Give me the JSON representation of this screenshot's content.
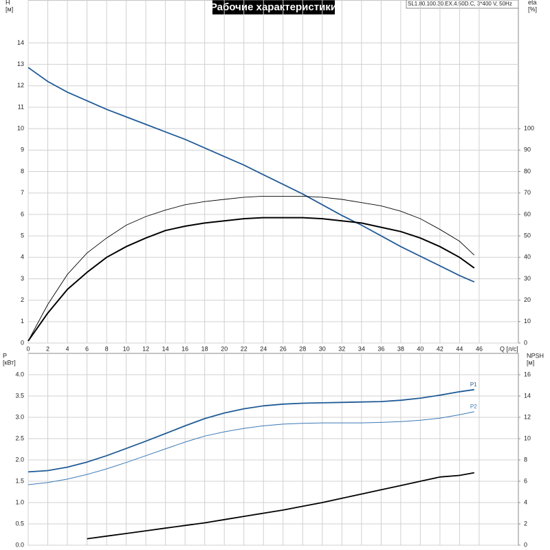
{
  "chart_data": [
    {
      "type": "line",
      "title": "Рабочие характеристики",
      "subtitle": "SL1.80.100.30.EX.4.50D.C, 3*400 V, 50Hz",
      "xlabel": "Q [л/с]",
      "ylabel": [
        "H",
        "[м]"
      ],
      "y2label": [
        "eta",
        "[%]"
      ],
      "x": [
        0,
        2,
        4,
        6,
        8,
        10,
        12,
        14,
        16,
        18,
        20,
        22,
        24,
        26,
        28,
        30,
        32,
        34,
        36,
        38,
        40,
        42,
        44,
        45.5
      ],
      "xlim": [
        0,
        50
      ],
      "xticks": [
        0,
        2,
        4,
        6,
        8,
        10,
        12,
        14,
        16,
        18,
        20,
        22,
        24,
        26,
        28,
        30,
        32,
        34,
        36,
        38,
        40,
        42,
        44,
        46
      ],
      "ylim": [
        0,
        16
      ],
      "yticks": [
        0,
        1,
        2,
        3,
        4,
        5,
        6,
        7,
        8,
        9,
        10,
        11,
        12,
        13,
        14
      ],
      "y2lim": [
        0,
        160
      ],
      "y2ticks": [
        0,
        10,
        20,
        30,
        40,
        50,
        60,
        70,
        80,
        90,
        100
      ],
      "grid": true,
      "series": [
        {
          "color": "#1f5a96",
          "width": 1.8,
          "values": [
            12.85,
            12.2,
            11.7,
            11.3,
            10.9,
            10.55,
            10.2,
            9.85,
            9.5,
            9.1,
            8.7,
            8.3,
            7.85,
            7.4,
            6.95,
            6.45,
            5.95,
            5.5,
            5.0,
            4.5,
            4.05,
            3.6,
            3.15,
            2.85
          ]
        },
        {
          "color": "#000000",
          "width": 2,
          "axis": "y2",
          "values": [
            1,
            14,
            25,
            33,
            40,
            45,
            49,
            52.5,
            54.5,
            56,
            57,
            58,
            58.5,
            58.5,
            58.5,
            58,
            57,
            56,
            54,
            52,
            49,
            45,
            40,
            35
          ]
        },
        {
          "color": "#000000",
          "width": 0.9,
          "axis": "y2",
          "values": [
            1,
            18,
            32,
            42,
            49,
            55,
            59,
            62,
            64.5,
            66,
            67,
            68,
            68.5,
            68.5,
            68.5,
            68,
            67,
            65.5,
            64,
            61.5,
            58,
            53,
            47.5,
            41
          ]
        }
      ]
    },
    {
      "type": "line",
      "ylabel": [
        "P",
        "[кВт]"
      ],
      "y2label": [
        "NPSH",
        "[м]"
      ],
      "x": [
        0,
        2,
        4,
        6,
        8,
        10,
        12,
        14,
        16,
        18,
        20,
        22,
        24,
        26,
        28,
        30,
        32,
        34,
        36,
        38,
        40,
        42,
        44,
        45.5
      ],
      "xlim": [
        0,
        50
      ],
      "ylim": [
        0,
        4.5
      ],
      "yticks": [
        {
          "value": 0,
          "label": "0.0"
        },
        0.5,
        {
          "value": 1,
          "label": "1.0"
        },
        1.5,
        {
          "value": 2,
          "label": "2.0"
        },
        2.5,
        {
          "value": 3,
          "label": "3.0"
        },
        3.5,
        {
          "value": 4,
          "label": "4.0"
        }
      ],
      "y2lim": [
        0,
        18
      ],
      "y2ticks": [
        0,
        2,
        4,
        6,
        8,
        10,
        12,
        14,
        16
      ],
      "grid": true,
      "series": [
        {
          "name": "P1",
          "color": "#1f5a96",
          "width": 1.8,
          "values": [
            1.72,
            1.75,
            1.83,
            1.95,
            2.1,
            2.27,
            2.44,
            2.62,
            2.8,
            2.97,
            3.1,
            3.2,
            3.27,
            3.31,
            3.33,
            3.34,
            3.35,
            3.36,
            3.37,
            3.4,
            3.45,
            3.52,
            3.6,
            3.65
          ]
        },
        {
          "name": "P2",
          "color": "#3a78b5",
          "width": 1,
          "values": [
            1.42,
            1.47,
            1.55,
            1.66,
            1.79,
            1.94,
            2.1,
            2.26,
            2.42,
            2.56,
            2.66,
            2.74,
            2.8,
            2.84,
            2.86,
            2.87,
            2.87,
            2.87,
            2.88,
            2.9,
            2.93,
            2.98,
            3.06,
            3.13
          ]
        },
        {
          "color": "#000000",
          "width": 1.8,
          "axis": "y2",
          "values": [
            null,
            null,
            null,
            0.6,
            0.85,
            1.1,
            1.35,
            1.6,
            1.85,
            2.1,
            2.4,
            2.7,
            3.0,
            3.3,
            3.65,
            4.0,
            4.4,
            4.8,
            5.2,
            5.6,
            6.0,
            6.4,
            6.55,
            6.8
          ]
        }
      ]
    }
  ]
}
